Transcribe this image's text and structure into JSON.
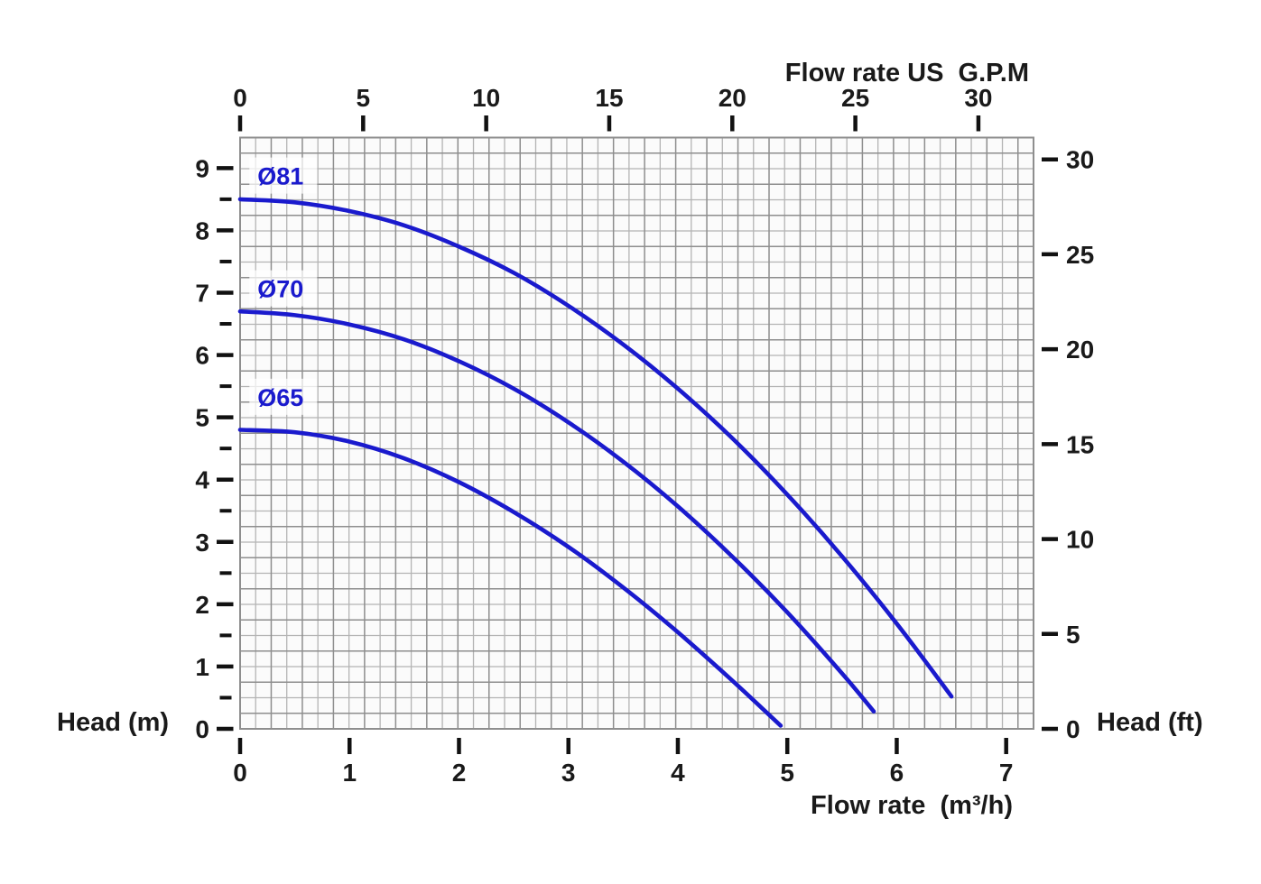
{
  "chart_data": {
    "type": "line",
    "description": "Pump performance curves: head versus flow rate for three impeller diameters",
    "x_axis_bottom": {
      "label": "Flow rate  (m³/h)",
      "unit": "m³/h",
      "ticks": [
        0,
        1,
        2,
        3,
        4,
        5,
        6,
        7
      ],
      "range": [
        0,
        7.25
      ]
    },
    "x_axis_top": {
      "label": "Flow rate US  G.P.M",
      "unit": "US G.P.M",
      "ticks": [
        0,
        5,
        10,
        15,
        20,
        25,
        30
      ],
      "range": [
        0,
        32.24
      ]
    },
    "y_axis_left": {
      "label": "Head (m)",
      "unit": "m",
      "ticks": [
        0,
        1,
        2,
        3,
        4,
        5,
        6,
        7,
        8,
        9
      ],
      "minor_tick_step": 0.5,
      "range": [
        0,
        9.49
      ]
    },
    "y_axis_right": {
      "label": "Head (ft)",
      "unit": "ft",
      "ticks": [
        0,
        5,
        10,
        15,
        20,
        25,
        30
      ],
      "range": [
        0,
        31.15
      ]
    },
    "grid": {
      "on": true,
      "cells_x": 51,
      "cells_y": 38,
      "line_color_light": "#b4b4b4",
      "line_color_dark": "#8e8e8e",
      "border_color": "#8e8e8e",
      "background": "#fbfbfb"
    },
    "series": [
      {
        "name": "Ø81",
        "impeller_diameter_mm": 81,
        "label_anchor": {
          "q": 0.39,
          "h": 8.88
        },
        "points": [
          [
            0,
            8.5
          ],
          [
            0.5,
            8.45
          ],
          [
            1,
            8.31
          ],
          [
            1.5,
            8.08
          ],
          [
            2,
            7.74
          ],
          [
            2.5,
            7.32
          ],
          [
            3,
            6.79
          ],
          [
            3.5,
            6.17
          ],
          [
            4,
            5.46
          ],
          [
            4.5,
            4.66
          ],
          [
            5,
            3.76
          ],
          [
            5.5,
            2.77
          ],
          [
            6,
            1.69
          ],
          [
            6.5,
            0.52
          ]
        ]
      },
      {
        "name": "Ø70",
        "impeller_diameter_mm": 70,
        "label_anchor": {
          "q": 0.39,
          "h": 7.07
        },
        "points": [
          [
            0,
            6.7
          ],
          [
            0.5,
            6.64
          ],
          [
            1,
            6.49
          ],
          [
            1.5,
            6.25
          ],
          [
            2,
            5.9
          ],
          [
            2.5,
            5.46
          ],
          [
            3,
            4.92
          ],
          [
            3.5,
            4.29
          ],
          [
            4,
            3.57
          ],
          [
            4.5,
            2.76
          ],
          [
            5,
            1.87
          ],
          [
            5.5,
            0.89
          ],
          [
            5.79,
            0.28
          ]
        ]
      },
      {
        "name": "Ø65",
        "impeller_diameter_mm": 65,
        "label_anchor": {
          "q": 0.39,
          "h": 5.33
        },
        "points": [
          [
            0,
            4.8
          ],
          [
            0.5,
            4.76
          ],
          [
            1,
            4.61
          ],
          [
            1.5,
            4.34
          ],
          [
            2,
            3.96
          ],
          [
            2.5,
            3.48
          ],
          [
            3,
            2.92
          ],
          [
            3.5,
            2.27
          ],
          [
            4,
            1.55
          ],
          [
            4.5,
            0.77
          ],
          [
            4.94,
            0.05
          ]
        ]
      }
    ],
    "colors": {
      "curve": "#1a1acd",
      "axis_text": "#1a1a1a",
      "tick": "#111111",
      "curve_label": "#1a1acd",
      "curve_label_background": "#ffffff"
    },
    "legend_position": "on-curve-labels"
  }
}
